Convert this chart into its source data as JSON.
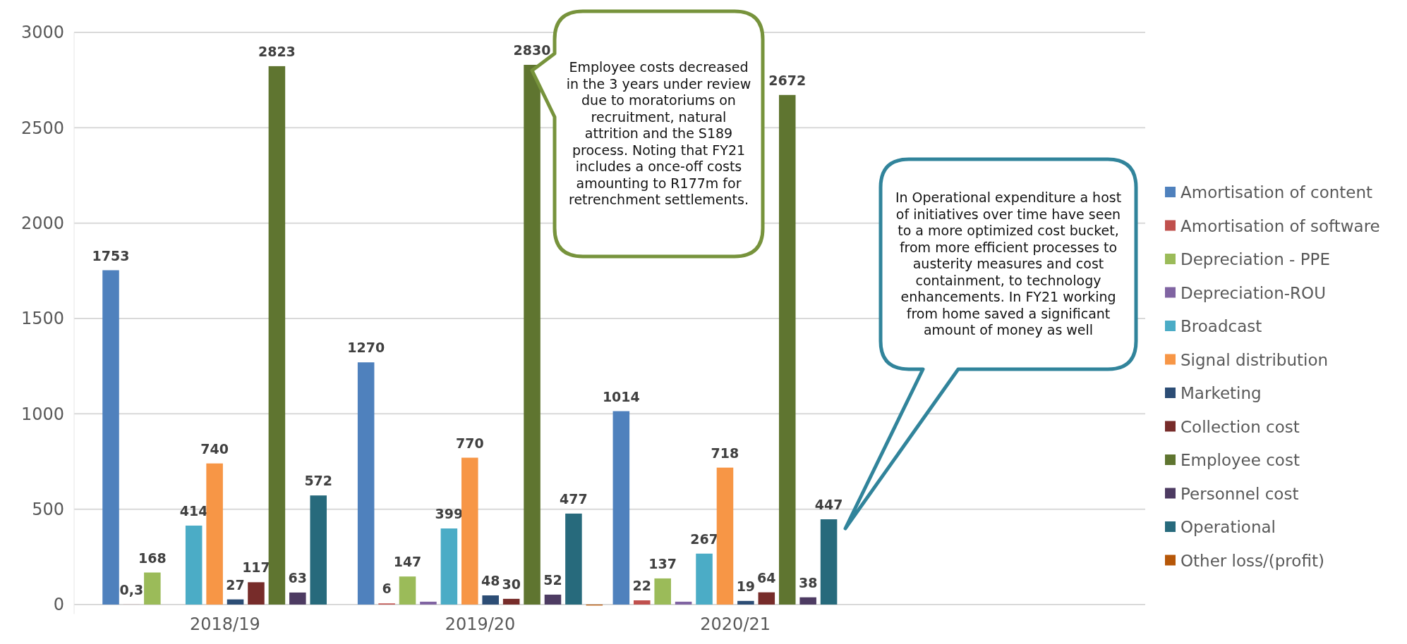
{
  "chart_data": {
    "type": "bar",
    "categories": [
      "2018/19",
      "2019/20",
      "2020/21"
    ],
    "series": [
      {
        "name": "Amortisation of content",
        "color": "#4f81bd",
        "values": [
          1753,
          1270,
          1014
        ],
        "value_labels": [
          "1753",
          "1270",
          "1014"
        ]
      },
      {
        "name": "Amortisation of software",
        "color": "#c0504d",
        "values": [
          0.3,
          6,
          22
        ],
        "value_labels": [
          "0,3",
          "6",
          "22"
        ]
      },
      {
        "name": "Depreciation - PPE",
        "color": "#9bbb59",
        "values": [
          168,
          147,
          137
        ],
        "value_labels": [
          "168",
          "147",
          "137"
        ]
      },
      {
        "name": "Depreciation-ROU",
        "color": "#8064a2",
        "values": [
          null,
          15,
          15
        ],
        "value_labels": [
          null,
          null,
          null
        ]
      },
      {
        "name": "Broadcast",
        "color": "#4bacc6",
        "values": [
          414,
          399,
          267
        ],
        "value_labels": [
          "414",
          "399",
          "267"
        ]
      },
      {
        "name": "Signal distribution",
        "color": "#f79646",
        "values": [
          740,
          770,
          718
        ],
        "value_labels": [
          "740",
          "770",
          "718"
        ]
      },
      {
        "name": "Marketing",
        "color": "#2c4d75",
        "values": [
          27,
          48,
          19
        ],
        "value_labels": [
          "27",
          "48",
          "19"
        ]
      },
      {
        "name": "Collection cost",
        "color": "#772c2a",
        "values": [
          117,
          30,
          64
        ],
        "value_labels": [
          "117",
          "30",
          "64"
        ]
      },
      {
        "name": "Employee cost",
        "color": "#5f7530",
        "values": [
          2823,
          2830,
          2672
        ],
        "value_labels": [
          "2823",
          "2830",
          "2672"
        ]
      },
      {
        "name": "Personnel cost",
        "color": "#4d3b62",
        "values": [
          63,
          52,
          38
        ],
        "value_labels": [
          "63",
          "52",
          "38"
        ]
      },
      {
        "name": "Operational",
        "color": "#276a7c",
        "values": [
          572,
          477,
          447
        ],
        "value_labels": [
          "572",
          "477",
          "447"
        ]
      },
      {
        "name": "Other loss/(profit)",
        "color": "#b65708",
        "values": [
          null,
          -5,
          null
        ],
        "value_labels": [
          null,
          null,
          null
        ]
      }
    ],
    "ylim": [
      -50,
      3000
    ],
    "yticks": [
      0,
      500,
      1000,
      1500,
      2000,
      2500,
      3000
    ],
    "grid": "y",
    "legend": "right",
    "annotations": [
      {
        "text": "Employee costs decreased in the 3 years under review due to moratoriums on recruitment, natural attrition and the S189 process. Noting that FY21 includes a once-off costs amounting to R177m for retrenchment settlements."
      },
      {
        "text": "In Operational expenditure a host of initiatives over time have seen to a more optimized cost bucket, from more efficient processes to austerity measures and cost containment, to technology enhancements. In FY21 working from home saved a significant amount of money as well"
      }
    ]
  }
}
